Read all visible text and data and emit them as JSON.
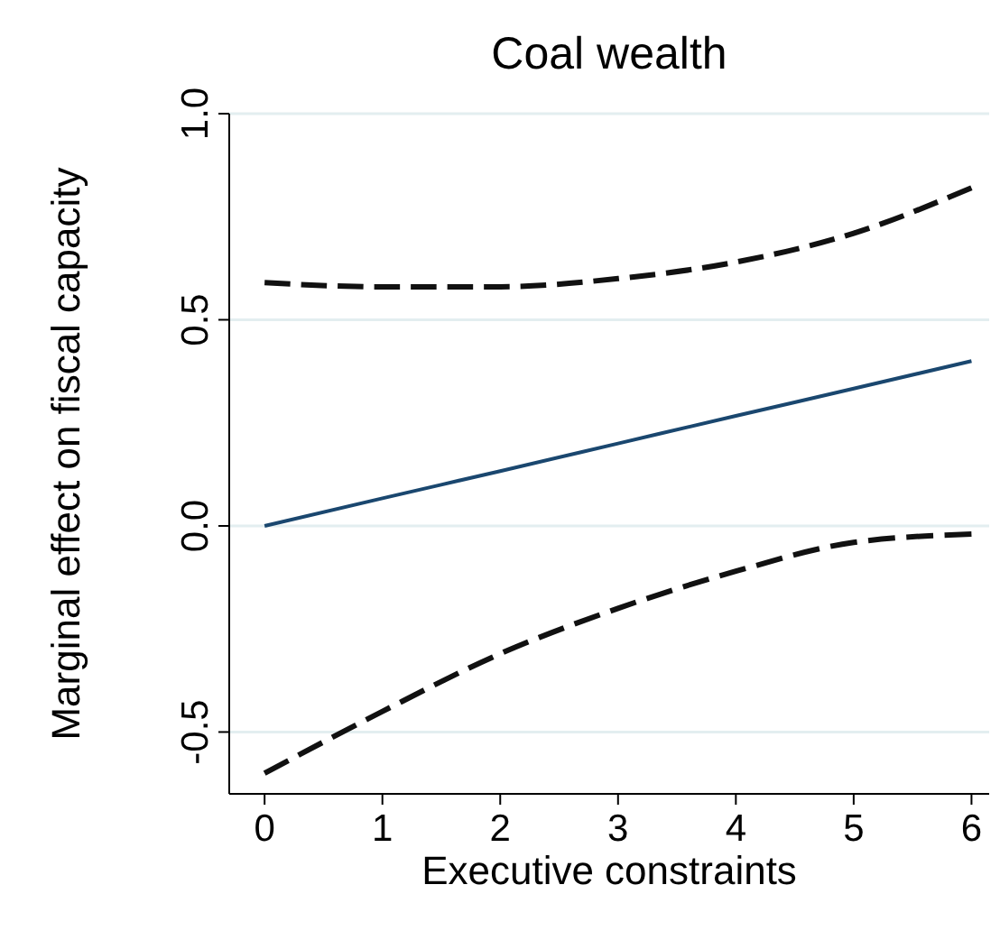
{
  "chart_data": {
    "type": "line",
    "title": "Coal wealth",
    "xlabel": "Executive constraints",
    "ylabel": "Marginal effect on fiscal capacity",
    "x": [
      0,
      1,
      2,
      3,
      4,
      5,
      6
    ],
    "series": [
      {
        "color": "#1a476f",
        "line_style": "solid",
        "values": [
          0,
          0.067,
          0.133,
          0.2,
          0.267,
          0.333,
          0.4
        ]
      },
      {
        "color": "#111111",
        "line_style": "dashed",
        "values": [
          0.59,
          0.58,
          0.58,
          0.6,
          0.64,
          0.71,
          0.82
        ]
      },
      {
        "color": "#111111",
        "line_style": "dashed",
        "values": [
          -0.6,
          -0.45,
          -0.31,
          -0.2,
          -0.11,
          -0.04,
          -0.02
        ]
      }
    ],
    "xlim": [
      -0.3,
      6.15
    ],
    "ylim": [
      -0.65,
      1.0
    ],
    "xticks": [
      0,
      1,
      2,
      3,
      4,
      5,
      6
    ],
    "yticks": [
      {
        "value": -0.5,
        "label": "-0.5"
      },
      {
        "value": 0,
        "label": "0.0"
      },
      {
        "value": 0.5,
        "label": "0.5"
      },
      {
        "value": 1,
        "label": "1.0"
      }
    ],
    "grid": "y",
    "marker": "none"
  }
}
